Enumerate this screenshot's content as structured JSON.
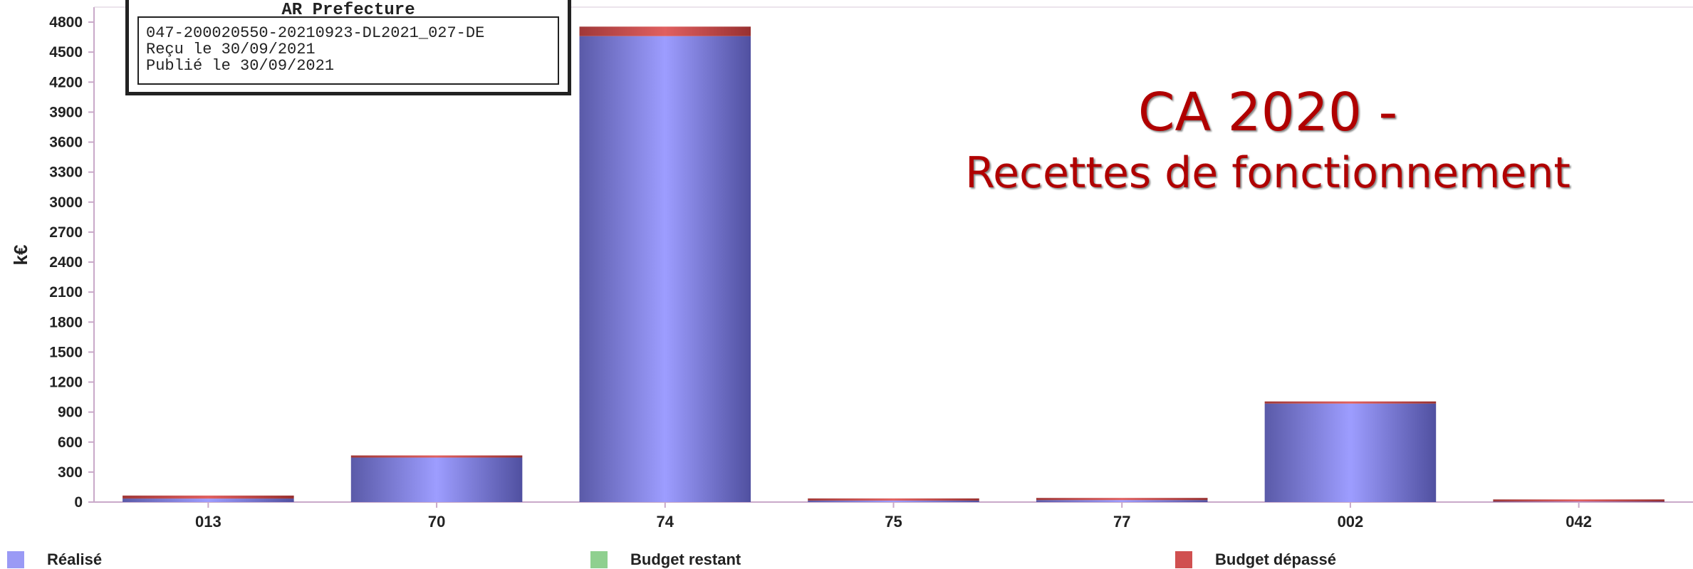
{
  "stamp": {
    "title": "AR Prefecture",
    "line1": "047-200020550-20210923-DL2021_027-DE",
    "line2": "Reçu le 30/09/2021",
    "line3": "Publié le 30/09/2021"
  },
  "title_main": "CA 2020 -",
  "title_sub": "Recettes de fonctionnement",
  "colors": {
    "realise": "#9a9af5",
    "restant": "#8fd08f",
    "depasse": "#d05050",
    "title": "#b00000"
  },
  "chart_data": {
    "type": "bar",
    "ylabel": "k€",
    "ylim": [
      0,
      4950
    ],
    "yticks": [
      0,
      300,
      600,
      900,
      1200,
      1500,
      1800,
      2100,
      2400,
      2700,
      3000,
      3300,
      3600,
      3900,
      4200,
      4500,
      4800
    ],
    "categories": [
      "013",
      "70",
      "74",
      "75",
      "77",
      "002",
      "042"
    ],
    "series": [
      {
        "name": "Réalisé",
        "values": [
          35,
          445,
          4660,
          15,
          20,
          985,
          5
        ]
      },
      {
        "name": "Budget restant",
        "values": [
          0,
          0,
          0,
          0,
          0,
          0,
          0
        ]
      },
      {
        "name": "Budget dépassé",
        "values": [
          30,
          10,
          95,
          10,
          20,
          10,
          5
        ]
      }
    ],
    "grid": false,
    "legend": "bottom"
  }
}
